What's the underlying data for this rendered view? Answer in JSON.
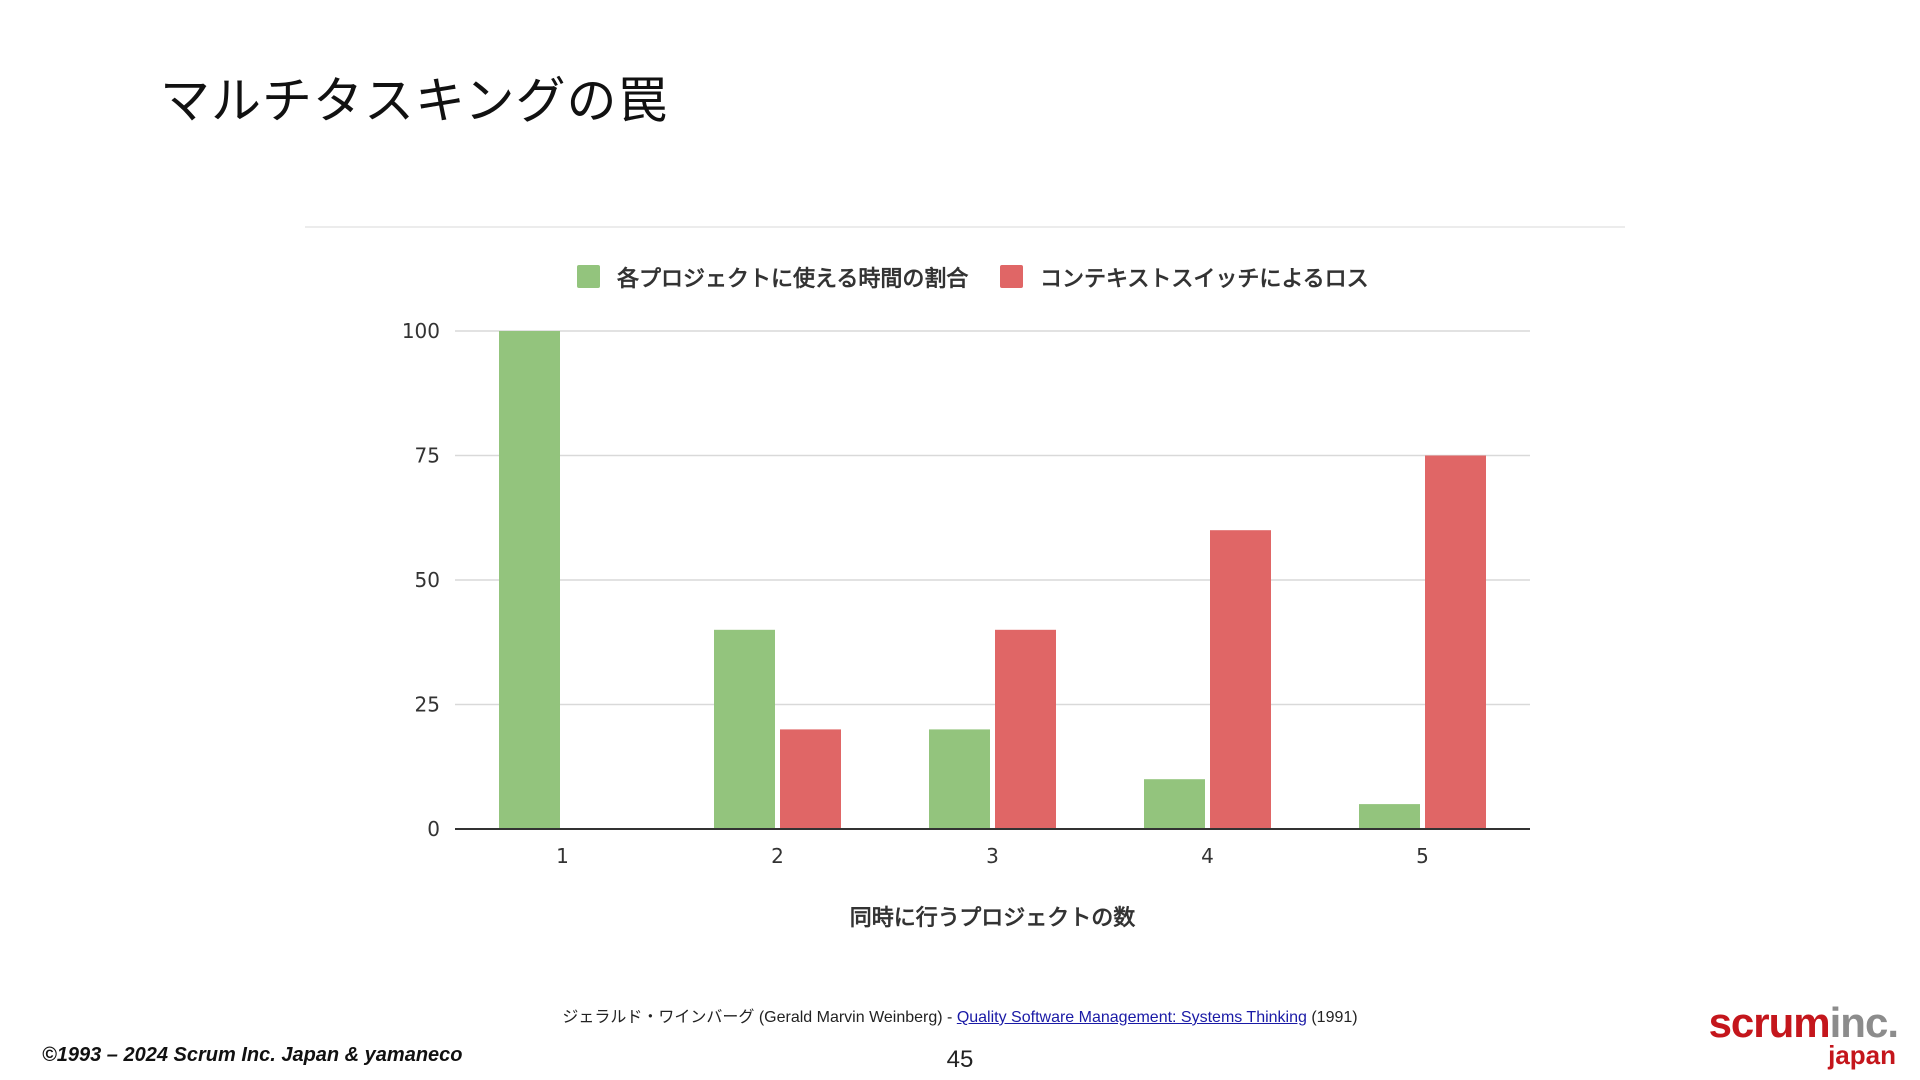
{
  "slide": {
    "title": "マルチタスキングの罠",
    "page_number": "45",
    "copyright": "©1993 – 2024 Scrum Inc. Japan & yamaneco",
    "logo": {
      "scrum": "scrum",
      "inc": "inc.",
      "sub": "japan",
      "brand_red": "#c4161c",
      "brand_gray": "#8c8c8c"
    },
    "citation": {
      "prefix": "ジェラルド・ワインバーグ (Gerald Marvin Weinberg) - ",
      "link_text": "Quality Software Management: Systems Thinking",
      "suffix": " (1991)"
    }
  },
  "chart_data": {
    "type": "bar",
    "categories": [
      "1",
      "2",
      "3",
      "4",
      "5"
    ],
    "series": [
      {
        "name": "各プロジェクトに使える時間の割合",
        "values": [
          100,
          40,
          20,
          10,
          5
        ],
        "color": "#93c47d"
      },
      {
        "name": "コンテキストスイッチによるロス",
        "values": [
          0,
          20,
          40,
          60,
          75
        ],
        "color": "#e06666"
      }
    ],
    "xlabel": "同時に行うプロジェクトの数",
    "ylabel": "",
    "ylim": [
      0,
      100
    ],
    "yticks": [
      "0",
      "25",
      "50",
      "75",
      "100"
    ],
    "grid": true,
    "legend_position": "top"
  }
}
